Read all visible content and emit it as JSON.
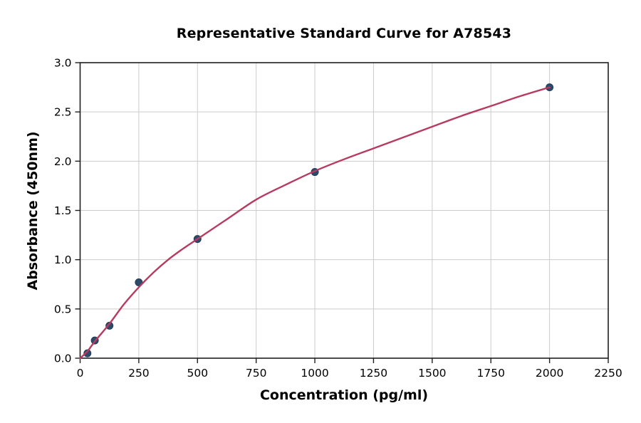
{
  "figure": {
    "background": "#ffffff"
  },
  "chart_data": {
    "type": "scatter",
    "title": "Representative Standard Curve for A78543",
    "xlabel": "Concentration (pg/ml)",
    "ylabel": "Absorbance (450nm)",
    "xlim": [
      0,
      2250
    ],
    "ylim": [
      0.0,
      3.0
    ],
    "grid": true,
    "legend": false,
    "x_ticks": {
      "values": [
        0,
        250,
        500,
        750,
        1000,
        1250,
        1500,
        1750,
        2000,
        2250
      ],
      "labels": [
        "0",
        "250",
        "500",
        "750",
        "1000",
        "1250",
        "1500",
        "1750",
        "2000",
        "2250"
      ]
    },
    "y_ticks": {
      "values": [
        0.0,
        0.5,
        1.0,
        1.5,
        2.0,
        2.5,
        3.0
      ],
      "labels": [
        "0.0",
        "0.5",
        "1.0",
        "1.5",
        "2.0",
        "2.5",
        "3.0"
      ]
    },
    "series": [
      {
        "name": "standard-points",
        "type": "scatter",
        "color": "#2d4a6b",
        "points": [
          [
            31.25,
            0.05
          ],
          [
            62.5,
            0.18
          ],
          [
            125,
            0.33
          ],
          [
            250,
            0.77
          ],
          [
            500,
            1.21
          ],
          [
            1000,
            1.89
          ],
          [
            2000,
            2.75
          ]
        ]
      },
      {
        "name": "fitted-curve",
        "type": "line",
        "color": "#b73b60",
        "points": [
          [
            0,
            0.0
          ],
          [
            31.25,
            0.07
          ],
          [
            62.5,
            0.17
          ],
          [
            125,
            0.35
          ],
          [
            187.5,
            0.55
          ],
          [
            250,
            0.72
          ],
          [
            312.5,
            0.87
          ],
          [
            375,
            1.0
          ],
          [
            437.5,
            1.11
          ],
          [
            500,
            1.21
          ],
          [
            625,
            1.41
          ],
          [
            750,
            1.61
          ],
          [
            875,
            1.76
          ],
          [
            1000,
            1.9
          ],
          [
            1125,
            2.02
          ],
          [
            1250,
            2.13
          ],
          [
            1375,
            2.24
          ],
          [
            1500,
            2.35
          ],
          [
            1625,
            2.46
          ],
          [
            1750,
            2.56
          ],
          [
            1875,
            2.66
          ],
          [
            2000,
            2.75
          ]
        ]
      }
    ],
    "style": {
      "grid_color": "#cccccc",
      "spine_color": "#1f1f1f",
      "tick_color": "#1f1f1f",
      "text_color": "#000000"
    }
  }
}
